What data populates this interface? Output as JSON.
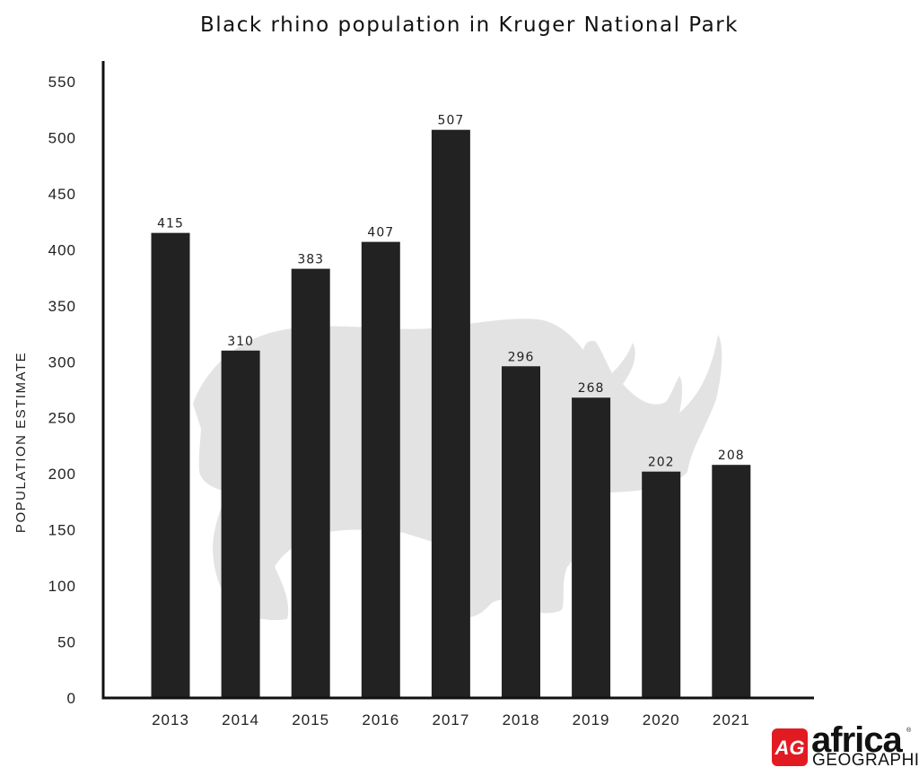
{
  "chart_data": {
    "type": "bar",
    "title": "Black rhino population in Kruger National Park",
    "xlabel": "",
    "ylabel": "POPULATION ESTIMATE",
    "categories": [
      "2013",
      "2014",
      "2015",
      "2016",
      "2017",
      "2018",
      "2019",
      "2020",
      "2021"
    ],
    "values": [
      415,
      310,
      383,
      407,
      507,
      296,
      268,
      202,
      208
    ],
    "ylim": [
      0,
      550
    ],
    "yticks": [
      0,
      50,
      100,
      150,
      200,
      250,
      300,
      350,
      400,
      450,
      500,
      550
    ],
    "grid": false,
    "bar_color": "#222222",
    "background_silhouette": "rhino",
    "silhouette_color": "#e3e3e3"
  },
  "logo": {
    "mark": "AG",
    "line1": "africa",
    "line2": "GEOGRAPHIC",
    "registered": "®",
    "accent_color": "#e21b23"
  }
}
